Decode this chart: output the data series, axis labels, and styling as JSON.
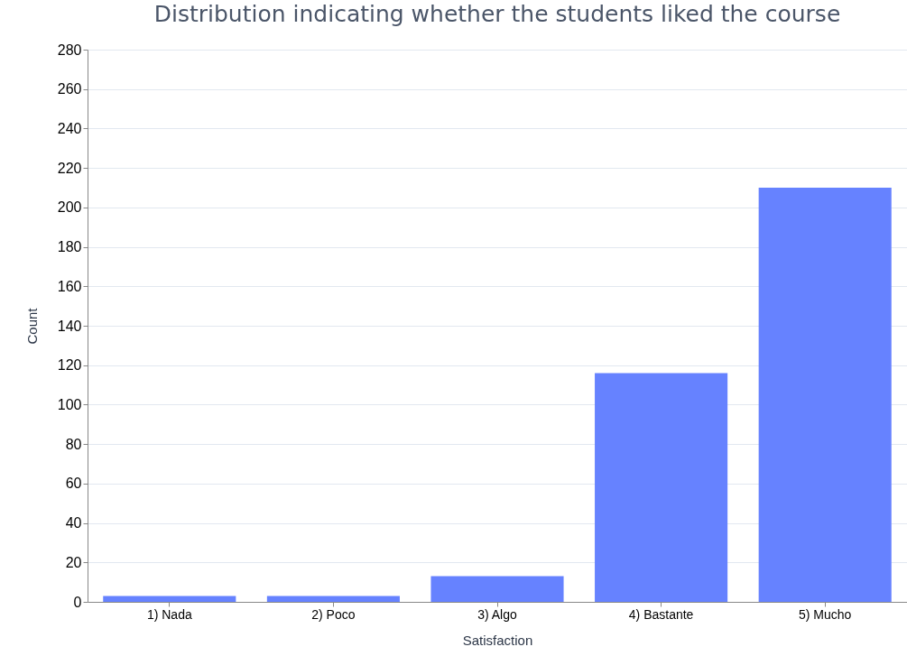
{
  "chart_data": {
    "type": "bar",
    "title": "Distribution indicating whether the students liked the course",
    "xlabel": "Satisfaction",
    "ylabel": "Count",
    "categories": [
      "1) Nada",
      "2) Poco",
      "3) Algo",
      "4) Bastante",
      "5) Mucho"
    ],
    "values": [
      3,
      3,
      13,
      116,
      210
    ],
    "color": "#6682ff",
    "ylim": [
      0,
      280
    ],
    "yticks": [
      0,
      20,
      40,
      60,
      80,
      100,
      120,
      140,
      160,
      180,
      200,
      220,
      240,
      260,
      280
    ],
    "grid": "y"
  }
}
